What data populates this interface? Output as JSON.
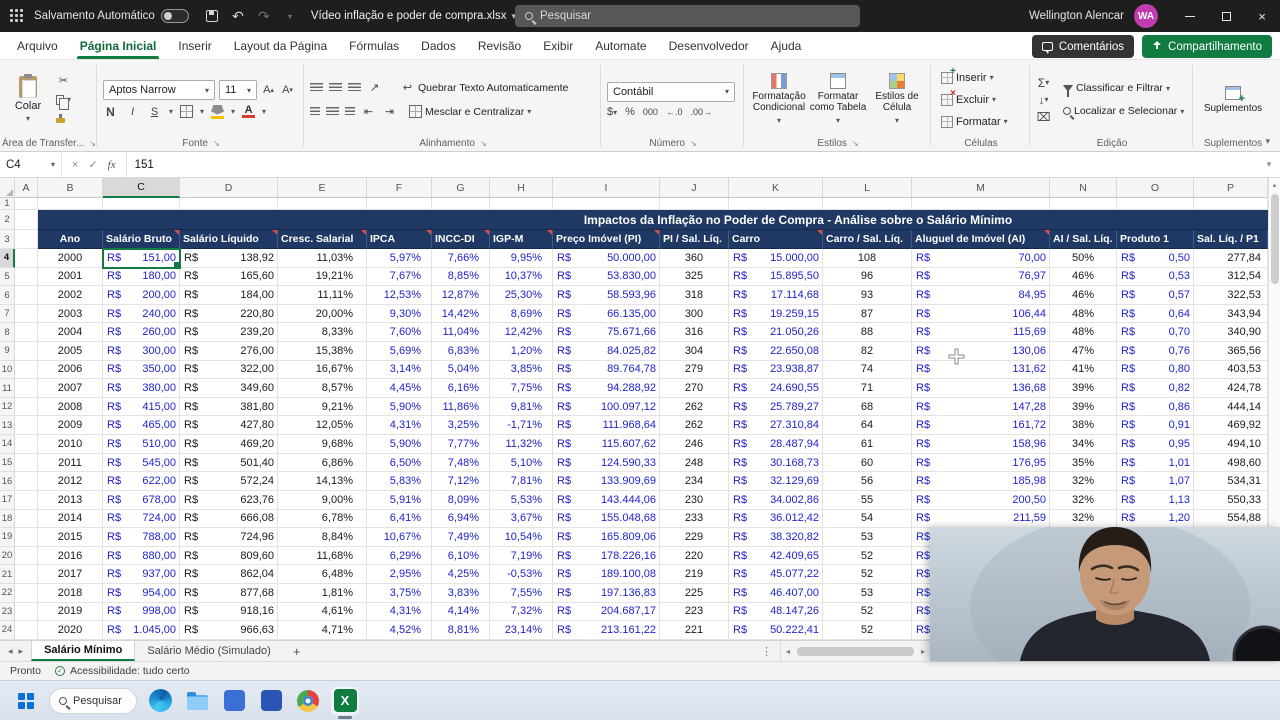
{
  "colors": {
    "excel_green": "#107C41",
    "table_header_blue": "#1F3864",
    "number_blue": "#2222CC",
    "avatar_purple": "#C03BB0"
  },
  "titlebar": {
    "autosave": "Salvamento Automático",
    "filename": "Vídeo inflação e poder de compra.xlsx",
    "search": "Pesquisar",
    "user": "Wellington Alencar",
    "initials": "WA"
  },
  "ribbon_tabs": [
    {
      "label": "Arquivo",
      "active": false
    },
    {
      "label": "Página Inicial",
      "active": true
    },
    {
      "label": "Inserir",
      "active": false
    },
    {
      "label": "Layout da Página",
      "active": false
    },
    {
      "label": "Fórmulas",
      "active": false
    },
    {
      "label": "Dados",
      "active": false
    },
    {
      "label": "Revisão",
      "active": false
    },
    {
      "label": "Exibir",
      "active": false
    },
    {
      "label": "Automate",
      "active": false
    },
    {
      "label": "Desenvolvedor",
      "active": false
    },
    {
      "label": "Ajuda",
      "active": false
    }
  ],
  "top_actions": {
    "comments": "Comentários",
    "share": "Compartilhamento"
  },
  "ribbon": {
    "paste": "Colar",
    "clipboard_group": "Área de Transfer...",
    "font_name": "Aptos Narrow",
    "font_size": "11",
    "bold": "N",
    "italic": "I",
    "underline": "S",
    "font_group": "Fonte",
    "wrap_text": "Quebrar Texto Automaticamente",
    "merge_center": "Mesclar e Centralizar",
    "align_group": "Alinhamento",
    "number_format": "Contábil",
    "number_group": "Número",
    "conditional_formatting": "Formatação Condicional",
    "format_as_table": "Formatar como Tabela",
    "cell_styles": "Estilos de Célula",
    "styles_group": "Estilos",
    "insert": "Inserir",
    "delete": "Excluir",
    "format": "Formatar",
    "cells_group": "Células",
    "sort_filter": "Classificar e Filtrar",
    "find_select": "Localizar e Selecionar",
    "edit_group": "Edição",
    "addins": "Suplementos",
    "addins_group": "Suplementos"
  },
  "formula_bar": {
    "cell_ref": "C4",
    "value": "151"
  },
  "grid": {
    "column_letters": [
      "A",
      "B",
      "C",
      "D",
      "E",
      "F",
      "G",
      "H",
      "I",
      "J",
      "K",
      "L",
      "M",
      "N",
      "O",
      "P"
    ],
    "selected_column": "C",
    "selected_row": 4,
    "title": "Impactos da Inflação no Poder de Compra - Análise sobre o Salário Mínimo",
    "headers": [
      {
        "label": "Ano",
        "comment": false
      },
      {
        "label": "Salário Bruto",
        "comment": true
      },
      {
        "label": "Salário Líquido",
        "comment": true
      },
      {
        "label": "Cresc. Salarial",
        "comment": true
      },
      {
        "label": "IPCA",
        "comment": true
      },
      {
        "label": "INCC-DI",
        "comment": true
      },
      {
        "label": "IGP-M",
        "comment": true
      },
      {
        "label": "Preço Imóvel (PI)",
        "comment": true
      },
      {
        "label": "PI / Sal. Líq.",
        "comment": false
      },
      {
        "label": "Carro",
        "comment": true
      },
      {
        "label": "Carro / Sal. Líq.",
        "comment": false
      },
      {
        "label": "Aluguel de Imóvel (AI)",
        "comment": true
      },
      {
        "label": "AI / Sal. Líq.",
        "comment": false
      },
      {
        "label": "Produto 1",
        "comment": false
      },
      {
        "label": "Sal. Líq. / P1",
        "comment": false
      }
    ],
    "rows": [
      [
        "2000",
        "151,00",
        "138,92",
        "11,03%",
        "5,97%",
        "7,66%",
        "9,95%",
        "50.000,00",
        "360",
        "15.000,00",
        "108",
        "70,00",
        "50%",
        "0,50",
        "277,84"
      ],
      [
        "2001",
        "180,00",
        "165,60",
        "19,21%",
        "7,67%",
        "8,85%",
        "10,37%",
        "53.830,00",
        "325",
        "15.895,50",
        "96",
        "76,97",
        "46%",
        "0,53",
        "312,54"
      ],
      [
        "2002",
        "200,00",
        "184,00",
        "11,11%",
        "12,53%",
        "12,87%",
        "25,30%",
        "58.593,96",
        "318",
        "17.114,68",
        "93",
        "84,95",
        "46%",
        "0,57",
        "322,53"
      ],
      [
        "2003",
        "240,00",
        "220,80",
        "20,00%",
        "9,30%",
        "14,42%",
        "8,69%",
        "66.135,00",
        "300",
        "19.259,15",
        "87",
        "106,44",
        "48%",
        "0,64",
        "343,94"
      ],
      [
        "2004",
        "260,00",
        "239,20",
        "8,33%",
        "7,60%",
        "11,04%",
        "12,42%",
        "75.671,66",
        "316",
        "21.050,26",
        "88",
        "115,69",
        "48%",
        "0,70",
        "340,90"
      ],
      [
        "2005",
        "300,00",
        "276,00",
        "15,38%",
        "5,69%",
        "6,83%",
        "1,20%",
        "84.025,82",
        "304",
        "22.650,08",
        "82",
        "130,06",
        "47%",
        "0,76",
        "365,56"
      ],
      [
        "2006",
        "350,00",
        "322,00",
        "16,67%",
        "3,14%",
        "5,04%",
        "3,85%",
        "89.764,78",
        "279",
        "23.938,87",
        "74",
        "131,62",
        "41%",
        "0,80",
        "403,53"
      ],
      [
        "2007",
        "380,00",
        "349,60",
        "8,57%",
        "4,45%",
        "6,16%",
        "7,75%",
        "94.288,92",
        "270",
        "24.690,55",
        "71",
        "136,68",
        "39%",
        "0,82",
        "424,78"
      ],
      [
        "2008",
        "415,00",
        "381,80",
        "9,21%",
        "5,90%",
        "11,86%",
        "9,81%",
        "100.097,12",
        "262",
        "25.789,27",
        "68",
        "147,28",
        "39%",
        "0,86",
        "444,14"
      ],
      [
        "2009",
        "465,00",
        "427,80",
        "12,05%",
        "4,31%",
        "3,25%",
        "-1,71%",
        "111.968,64",
        "262",
        "27.310,84",
        "64",
        "161,72",
        "38%",
        "0,91",
        "469,92"
      ],
      [
        "2010",
        "510,00",
        "469,20",
        "9,68%",
        "5,90%",
        "7,77%",
        "11,32%",
        "115.607,62",
        "246",
        "28.487,94",
        "61",
        "158,96",
        "34%",
        "0,95",
        "494,10"
      ],
      [
        "2011",
        "545,00",
        "501,40",
        "6,86%",
        "6,50%",
        "7,48%",
        "5,10%",
        "124.590,33",
        "248",
        "30.168,73",
        "60",
        "176,95",
        "35%",
        "1,01",
        "498,60"
      ],
      [
        "2012",
        "622,00",
        "572,24",
        "14,13%",
        "5,83%",
        "7,12%",
        "7,81%",
        "133.909,69",
        "234",
        "32.129,69",
        "56",
        "185,98",
        "32%",
        "1,07",
        "534,31"
      ],
      [
        "2013",
        "678,00",
        "623,76",
        "9,00%",
        "5,91%",
        "8,09%",
        "5,53%",
        "143.444,06",
        "230",
        "34.002,86",
        "55",
        "200,50",
        "32%",
        "1,13",
        "550,33"
      ],
      [
        "2014",
        "724,00",
        "666,08",
        "6,78%",
        "6,41%",
        "6,94%",
        "3,67%",
        "155.048,68",
        "233",
        "36.012,42",
        "54",
        "211,59",
        "32%",
        "1,20",
        "554,88"
      ],
      [
        "2015",
        "788,00",
        "724,96",
        "8,84%",
        "10,67%",
        "7,49%",
        "10,54%",
        "165.809,06",
        "229",
        "38.320,82",
        "53",
        "",
        "",
        "",
        ""
      ],
      [
        "2016",
        "880,00",
        "809,60",
        "11,68%",
        "6,29%",
        "6,10%",
        "7,19%",
        "178.226,16",
        "220",
        "42.409,65",
        "52",
        "",
        "",
        "",
        ""
      ],
      [
        "2017",
        "937,00",
        "862,04",
        "6,48%",
        "2,95%",
        "4,25%",
        "-0,53%",
        "189.100,08",
        "219",
        "45.077,22",
        "52",
        "",
        "",
        "",
        ""
      ],
      [
        "2018",
        "954,00",
        "877,68",
        "1,81%",
        "3,75%",
        "3,83%",
        "7,55%",
        "197.136,83",
        "225",
        "46.407,00",
        "53",
        "",
        "",
        "",
        ""
      ],
      [
        "2019",
        "998,00",
        "918,16",
        "4,61%",
        "4,31%",
        "4,14%",
        "7,32%",
        "204.687,17",
        "223",
        "48.147,26",
        "52",
        "",
        "",
        "",
        ""
      ],
      [
        "2020",
        "1.045,00",
        "966,63",
        "4,71%",
        "4,52%",
        "8,81%",
        "23,14%",
        "213.161,22",
        "221",
        "50.222,41",
        "52",
        "",
        "",
        "",
        ""
      ]
    ]
  },
  "sheet_bar": {
    "tabs": [
      {
        "label": "Salário Mínimo",
        "active": true
      },
      {
        "label": "Salário Médio (Simulado)",
        "active": false
      }
    ],
    "add": "+"
  },
  "status_bar": {
    "mode": "Pronto",
    "accessibility": "Acessibilidade: tudo certo"
  },
  "taskbar": {
    "search": "Pesquisar"
  }
}
